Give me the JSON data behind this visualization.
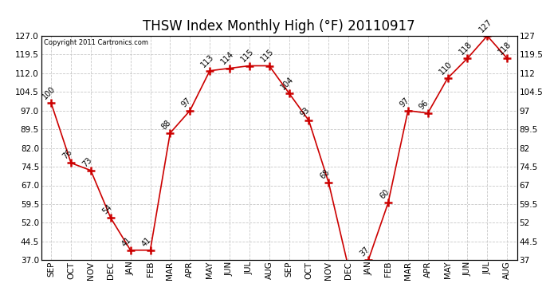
{
  "title": "THSW Index Monthly High (°F) 20110917",
  "copyright": "Copyright 2011 Cartronics.com",
  "categories": [
    "SEP",
    "OCT",
    "NOV",
    "DEC",
    "JAN",
    "FEB",
    "MAR",
    "APR",
    "MAY",
    "JUN",
    "JUL",
    "AUG",
    "SEP",
    "OCT",
    "NOV",
    "DEC",
    "JAN",
    "FEB",
    "MAR",
    "APR",
    "MAY",
    "JUN",
    "JUL",
    "AUG"
  ],
  "values": [
    100,
    76,
    73,
    54,
    41,
    41,
    88,
    97,
    113,
    114,
    115,
    115,
    104,
    93,
    68,
    34,
    37,
    60,
    97,
    96,
    110,
    118,
    127,
    118
  ],
  "line_color": "#cc0000",
  "bg_color": "#ffffff",
  "grid_color": "#c8c8c8",
  "ylim": [
    37.0,
    127.0
  ],
  "yticks_left": [
    37.0,
    44.5,
    52.0,
    59.5,
    67.0,
    74.5,
    82.0,
    89.5,
    97.0,
    104.5,
    112.0,
    119.5,
    127.0
  ],
  "ytick_labels_left": [
    "37.0",
    "44.5",
    "52.0",
    "59.5",
    "67.0",
    "74.5",
    "82.0",
    "89.5",
    "97.0",
    "104.5",
    "112.0",
    "119.5",
    "127.0"
  ],
  "ytick_labels_right": [
    "37",
    "44.5",
    "52",
    "59.5",
    "67",
    "74.5",
    "82",
    "89.5",
    "97",
    "104.5",
    "112",
    "119.5",
    "127"
  ],
  "title_fontsize": 12,
  "label_fontsize": 7.5,
  "annotation_fontsize": 7,
  "tick_label_fontsize": 7.5
}
